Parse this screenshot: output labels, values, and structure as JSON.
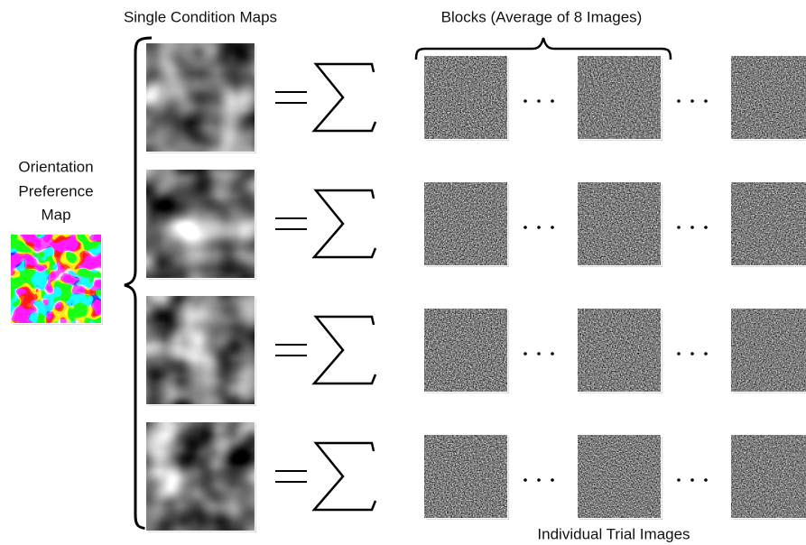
{
  "header": {
    "left_title": "Single Condition Maps",
    "right_title": "Blocks (Average of 8 Images)",
    "bottom_title": "Individual Trial Images"
  },
  "orientation_label": [
    "Orientation",
    "Preference",
    "Map"
  ]
}
